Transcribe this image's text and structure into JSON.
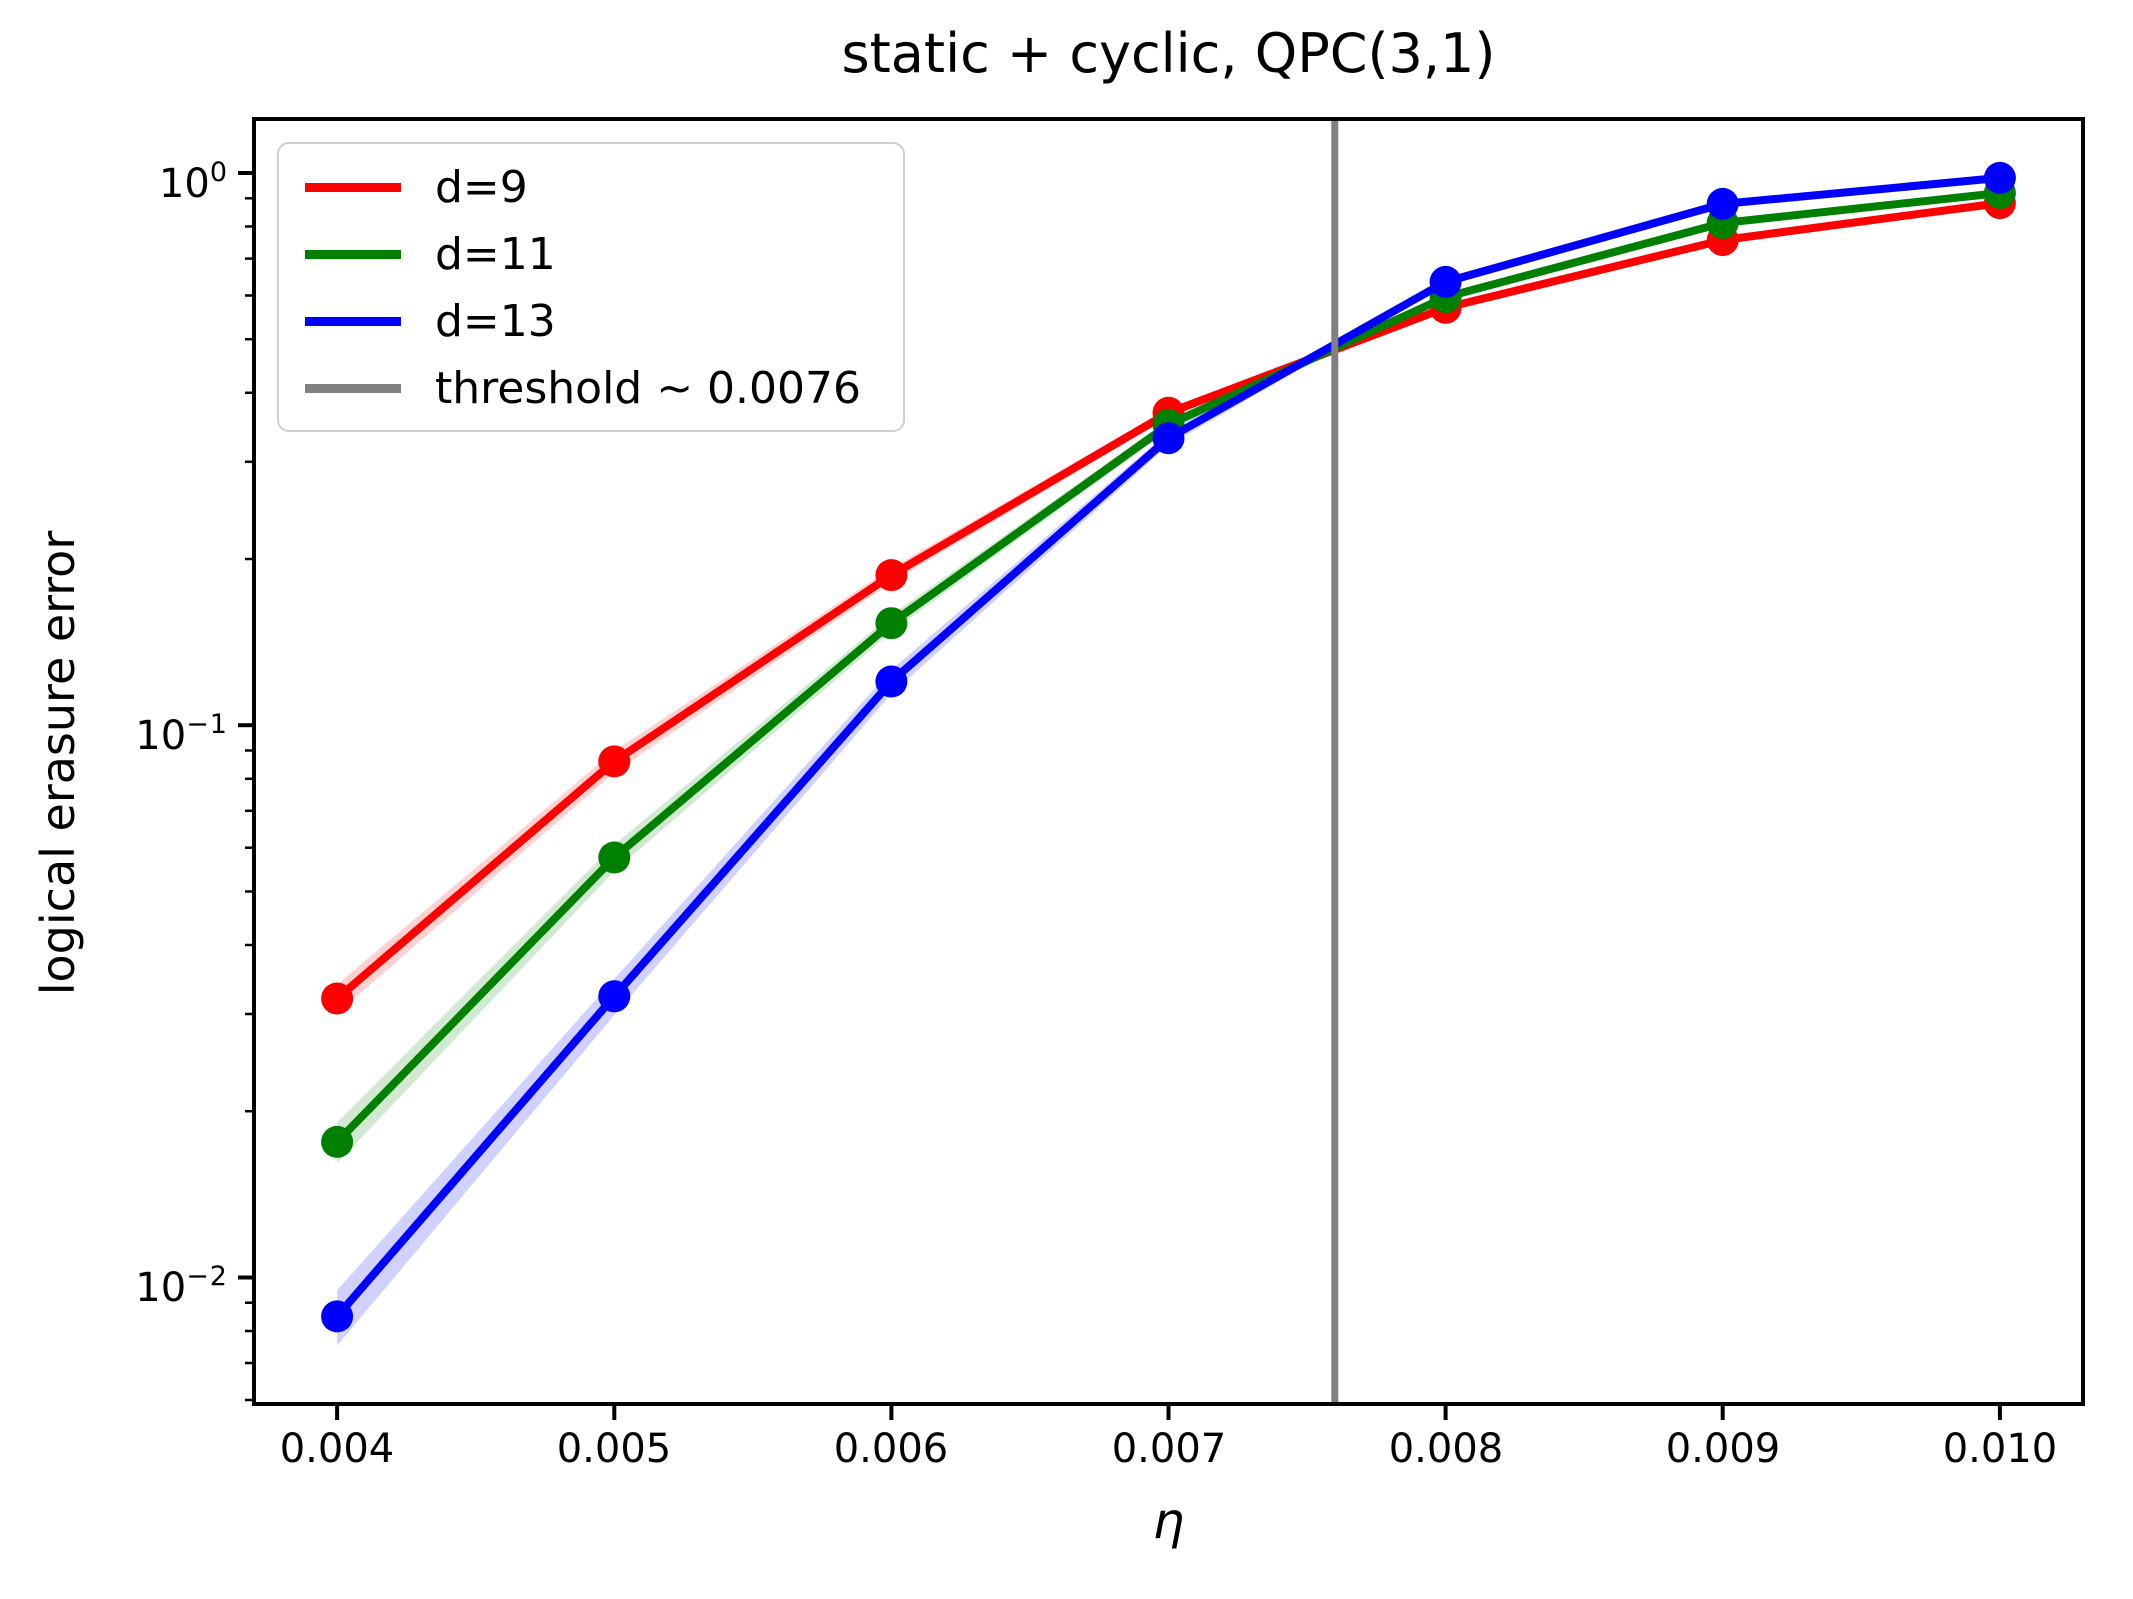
{
  "chart_data": {
    "type": "line",
    "title": "static + cyclic, QPC(3,1)",
    "xlabel": "η",
    "ylabel": "logical erasure error",
    "yscale": "log",
    "grid": false,
    "legend_position": "upper left",
    "xlim": [
      0.0037,
      0.0103
    ],
    "ylim": [
      0.0059,
      1.2526
    ],
    "x": [
      0.004,
      0.005,
      0.006,
      0.007,
      0.008,
      0.009,
      0.01
    ],
    "series": [
      {
        "name": "d=9",
        "color": "#ff0000",
        "values": [
          0.032,
          0.086,
          0.187,
          0.368,
          0.57,
          0.756,
          0.882
        ],
        "band_frac": [
          0.06,
          0.045,
          0.03,
          0.02,
          0.015,
          0.012,
          0.01
        ]
      },
      {
        "name": "d=11",
        "color": "#008000",
        "values": [
          0.0176,
          0.0576,
          0.153,
          0.35,
          0.596,
          0.812,
          0.92
        ],
        "band_frac": [
          0.085,
          0.055,
          0.035,
          0.022,
          0.015,
          0.012,
          0.01
        ]
      },
      {
        "name": "d=13",
        "color": "#0000ff",
        "values": [
          0.0085,
          0.0323,
          0.12,
          0.331,
          0.635,
          0.879,
          0.98
        ],
        "band_frac": [
          0.115,
          0.075,
          0.05,
          0.028,
          0.015,
          0.012,
          0.01
        ]
      }
    ],
    "threshold": {
      "label": "threshold ~ 0.0076",
      "value": 0.0076,
      "color": "#808080"
    },
    "x_ticks": {
      "values": [
        0.004,
        0.005,
        0.006,
        0.007,
        0.008,
        0.009,
        0.01
      ],
      "labels": [
        "0.004",
        "0.005",
        "0.006",
        "0.007",
        "0.008",
        "0.009",
        "0.010"
      ]
    },
    "y_ticks": [
      {
        "value": 1,
        "base": "10",
        "exp": "0"
      },
      {
        "value": 0.1,
        "base": "10",
        "exp": "−1"
      },
      {
        "value": 0.01,
        "base": "10",
        "exp": "−2"
      }
    ]
  }
}
